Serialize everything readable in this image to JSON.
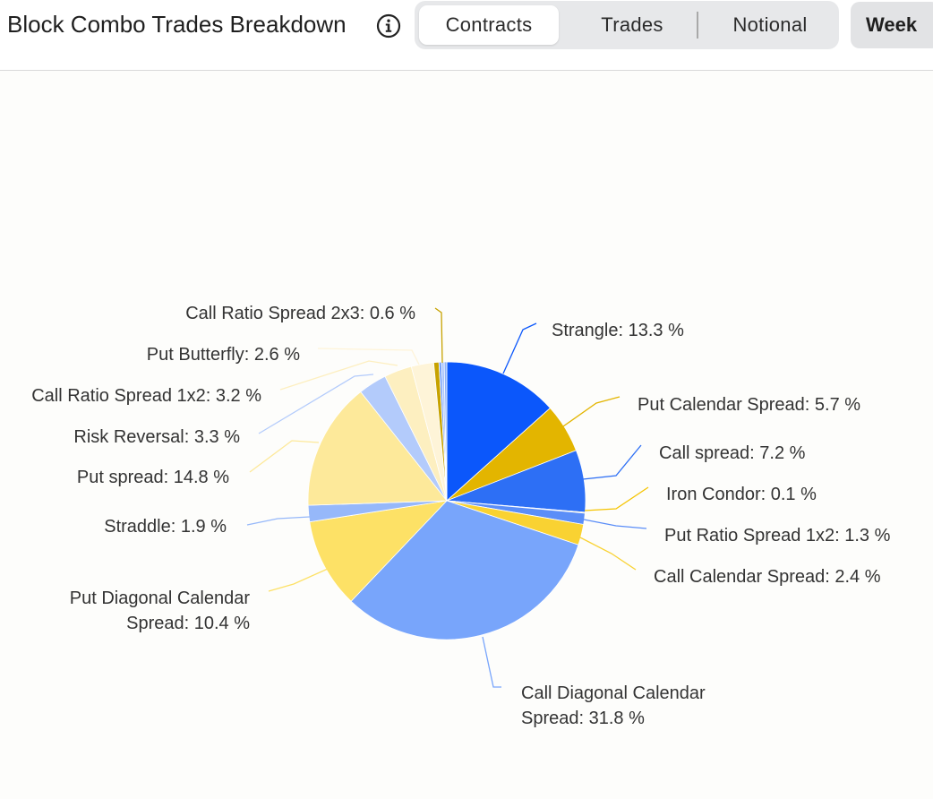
{
  "header": {
    "title": "Block Combo Trades Breakdown",
    "info_icon": "info-circle-icon",
    "tabs": [
      {
        "label": "Contracts",
        "active": true
      },
      {
        "label": "Trades",
        "active": false
      },
      {
        "label": "Notional",
        "active": false
      }
    ],
    "period_label": "Week"
  },
  "chart_data": {
    "type": "pie",
    "title": "",
    "unit": "%",
    "slices": [
      {
        "name": "Strangle",
        "value": 13.3,
        "color": "#0b57fb"
      },
      {
        "name": "Put Calendar Spread",
        "value": 5.7,
        "color": "#e3b500"
      },
      {
        "name": "Call spread",
        "value": 7.2,
        "color": "#2d6ff5"
      },
      {
        "name": "Iron Condor",
        "value": 0.1,
        "color": "#f5c400"
      },
      {
        "name": "Put Ratio Spread 1x2",
        "value": 1.3,
        "color": "#5b8ef8"
      },
      {
        "name": "Call Calendar Spread",
        "value": 2.4,
        "color": "#f9d232"
      },
      {
        "name": "Call Diagonal Calendar Spread",
        "value": 31.8,
        "color": "#78a5fb"
      },
      {
        "name": "Put Diagonal Calendar Spread",
        "value": 10.4,
        "color": "#fde166"
      },
      {
        "name": "Straddle",
        "value": 1.9,
        "color": "#96b8fa"
      },
      {
        "name": "Put spread",
        "value": 14.8,
        "color": "#fde99a"
      },
      {
        "name": "Risk Reversal",
        "value": 3.3,
        "color": "#b3cbfb"
      },
      {
        "name": "Call Ratio Spread 1x2",
        "value": 3.2,
        "color": "#fdefc0"
      },
      {
        "name": "Put Butterfly",
        "value": 2.6,
        "color": "#fef4d8"
      },
      {
        "name": "Call Ratio Spread 2x3",
        "value": 0.6,
        "color": "#c7a200"
      },
      {
        "name": "",
        "value": 0.3,
        "color": "#6f9cf9"
      },
      {
        "name": "",
        "value": 0.3,
        "color": "#a6c2fb"
      },
      {
        "name": "",
        "value": 0.3,
        "color": "#8fb3fa"
      }
    ],
    "labels": [
      {
        "lines": [
          "Strangle: 13.3 %"
        ]
      },
      {
        "lines": [
          "Put Calendar Spread: 5.7 %"
        ]
      },
      {
        "lines": [
          "Call spread: 7.2 %"
        ]
      },
      {
        "lines": [
          "Iron Condor: 0.1 %"
        ]
      },
      {
        "lines": [
          "Put Ratio Spread 1x2: 1.3 %"
        ]
      },
      {
        "lines": [
          "Call Calendar Spread: 2.4 %"
        ]
      },
      {
        "lines": [
          "Call Diagonal Calendar",
          "Spread: 31.8 %"
        ]
      },
      {
        "lines": [
          "Put Diagonal Calendar",
          "Spread: 10.4 %"
        ]
      },
      {
        "lines": [
          "Straddle: 1.9 %"
        ]
      },
      {
        "lines": [
          "Put spread: 14.8 %"
        ]
      },
      {
        "lines": [
          "Risk Reversal: 3.3 %"
        ]
      },
      {
        "lines": [
          "Call Ratio Spread 1x2: 3.2 %"
        ]
      },
      {
        "lines": [
          "Put Butterfly: 2.6 %"
        ]
      },
      {
        "lines": [
          "Call Ratio Spread 2x3: 0.6 %"
        ]
      }
    ],
    "legend": "none"
  }
}
